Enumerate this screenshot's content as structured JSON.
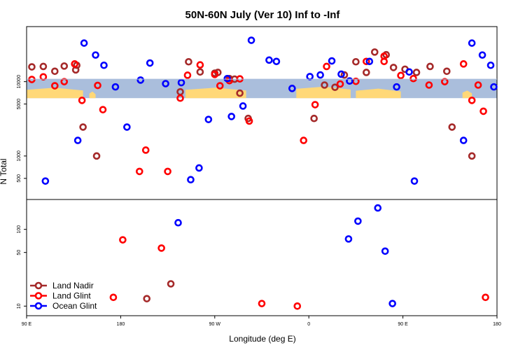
{
  "chart_data": {
    "type": "scatter",
    "title": "50N-60N July (Ver 10)   Inf to -Inf",
    "xlabel": "Longitude (deg E)",
    "ylabel": "N Total",
    "x_ticks": [
      {
        "value": 90,
        "label": "90 E"
      },
      {
        "value": 180,
        "label": "180"
      },
      {
        "value": 270,
        "label": "90 W"
      },
      {
        "value": 360,
        "label": "0"
      },
      {
        "value": 450,
        "label": "90 E"
      },
      {
        "value": 540,
        "label": "180"
      }
    ],
    "xlim": [
      90,
      540
    ],
    "series_colors": {
      "Land Nadir": "#a52a2a",
      "Land Glint": "#ff0000",
      "Ocean Glint": "#0000ff"
    },
    "top_panel": {
      "scale": "log",
      "ylim": [
        260,
        55000
      ],
      "y_ticks": [
        500,
        1000,
        5000,
        10000
      ],
      "y_tick_labels": [
        "500",
        "1000",
        "5000",
        "10000"
      ],
      "latitude_band": {
        "ylow": 6000,
        "yhigh": 10800,
        "ocean_color": "#aabedc",
        "land_color": "#ffd878"
      },
      "series": [
        {
          "name": "Land Nadir",
          "color": "#a52a2a",
          "points": [
            [
              95,
              15800
            ],
            [
              106,
              16000
            ],
            [
              117,
              13800
            ],
            [
              126,
              16200
            ],
            [
              137,
              14400
            ],
            [
              138,
              16600
            ],
            [
              144,
              2450
            ],
            [
              157,
              1000
            ],
            [
              237,
              7300
            ],
            [
              245,
              18500
            ],
            [
              256,
              13500
            ],
            [
              270,
              13000
            ],
            [
              273,
              13300
            ],
            [
              284,
              11000
            ],
            [
              289,
              10800
            ],
            [
              294,
              7000
            ],
            [
              302,
              3200
            ],
            [
              365,
              3200
            ],
            [
              375,
              9000
            ],
            [
              385,
              8400
            ],
            [
              394,
              12300
            ],
            [
              405,
              18500
            ],
            [
              415,
              13300
            ],
            [
              423,
              25000
            ],
            [
              434,
              23000
            ],
            [
              441,
              15500
            ],
            [
              452,
              14700
            ],
            [
              463,
              13300
            ],
            [
              476,
              16000
            ],
            [
              492,
              13800
            ],
            [
              497,
              2450
            ],
            [
              516,
              1000
            ]
          ]
        },
        {
          "name": "Land Glint",
          "color": "#ff0000",
          "points": [
            [
              95,
              10700
            ],
            [
              106,
              11600
            ],
            [
              117,
              8800
            ],
            [
              126,
              10000
            ],
            [
              136,
              17300
            ],
            [
              143,
              5600
            ],
            [
              158,
              8900
            ],
            [
              163,
              4200
            ],
            [
              198,
              620
            ],
            [
              204,
              1200
            ],
            [
              225,
              620
            ],
            [
              237,
              6000
            ],
            [
              244,
              12200
            ],
            [
              256,
              16800
            ],
            [
              270,
              12500
            ],
            [
              275,
              8800
            ],
            [
              284,
              10300
            ],
            [
              294,
              10900
            ],
            [
              303,
              2950
            ],
            [
              355,
              1620
            ],
            [
              366,
              4900
            ],
            [
              377,
              16000
            ],
            [
              390,
              9300
            ],
            [
              405,
              10100
            ],
            [
              415,
              18700
            ],
            [
              432,
              22000
            ],
            [
              432,
              18700
            ],
            [
              448,
              12100
            ],
            [
              460,
              11000
            ],
            [
              475,
              9000
            ],
            [
              490,
              10000
            ],
            [
              508,
              17300
            ],
            [
              516,
              5600
            ],
            [
              522,
              9000
            ],
            [
              527,
              4000
            ]
          ]
        },
        {
          "name": "Ocean Glint",
          "color": "#0000ff",
          "points": [
            [
              108,
              460
            ],
            [
              139,
              1620
            ],
            [
              145,
              33000
            ],
            [
              156,
              22800
            ],
            [
              164,
              16600
            ],
            [
              175,
              8500
            ],
            [
              186,
              2450
            ],
            [
              199,
              10500
            ],
            [
              208,
              17800
            ],
            [
              223,
              9400
            ],
            [
              238,
              9700
            ],
            [
              247,
              480
            ],
            [
              255,
              690
            ],
            [
              264,
              3100
            ],
            [
              282,
              11000
            ],
            [
              286,
              3400
            ],
            [
              297,
              4700
            ],
            [
              305,
              36000
            ],
            [
              322,
              19500
            ],
            [
              329,
              18700
            ],
            [
              344,
              8100
            ],
            [
              361,
              11700
            ],
            [
              371,
              12300
            ],
            [
              382,
              19000
            ],
            [
              391,
              12600
            ],
            [
              399,
              10200
            ],
            [
              418,
              18700
            ],
            [
              444,
              8500
            ],
            [
              456,
              13500
            ],
            [
              461,
              460
            ],
            [
              508,
              1620
            ],
            [
              516,
              33000
            ],
            [
              526,
              22800
            ],
            [
              534,
              16600
            ],
            [
              537,
              8500
            ]
          ]
        }
      ]
    },
    "bottom_panel": {
      "scale": "log",
      "ylim": [
        7.5,
        245
      ],
      "y_ticks": [
        10,
        50,
        100
      ],
      "y_tick_labels": [
        "10",
        "50",
        "100"
      ],
      "series": [
        {
          "name": "Land Nadir",
          "color": "#a52a2a",
          "points": [
            [
              205,
              12.5
            ],
            [
              228,
              19.5
            ]
          ]
        },
        {
          "name": "Land Glint",
          "color": "#ff0000",
          "points": [
            [
              173,
              13
            ],
            [
              182,
              73
            ],
            [
              219,
              57
            ],
            [
              315,
              10.8
            ],
            [
              349,
              10
            ],
            [
              529,
              13
            ]
          ]
        },
        {
          "name": "Ocean Glint",
          "color": "#0000ff",
          "points": [
            [
              235,
              122
            ],
            [
              398,
              75
            ],
            [
              407,
              128
            ],
            [
              426,
              190
            ],
            [
              433,
              52
            ],
            [
              440,
              10.8
            ]
          ]
        }
      ]
    },
    "legend": {
      "position": "bottom-left",
      "entries": [
        {
          "label": "Land Nadir",
          "color": "#a52a2a"
        },
        {
          "label": "Land Glint",
          "color": "#ff0000"
        },
        {
          "label": "Ocean Glint",
          "color": "#0000ff"
        }
      ]
    }
  }
}
